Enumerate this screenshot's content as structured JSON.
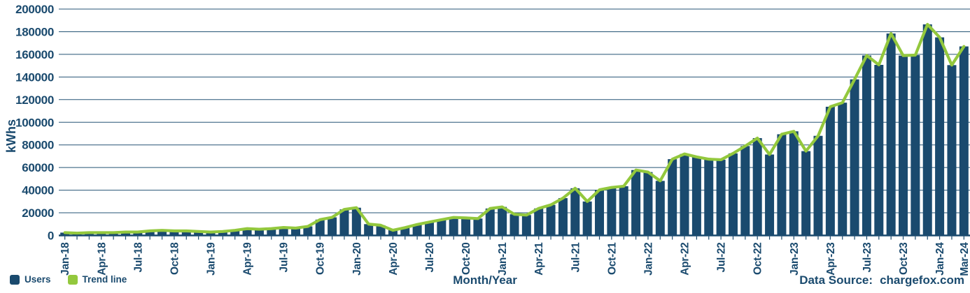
{
  "chart_data": {
    "type": "bar",
    "title": "",
    "ylabel": "kWhs",
    "xlabel": "Month/Year",
    "ylim": [
      0,
      200000
    ],
    "ytick_step": 20000,
    "grid": true,
    "legend_position": "bottom-left",
    "source_label": "Data Source:",
    "source_value": "chargefox.com",
    "colors": {
      "bar": "#1a4a6e",
      "trend": "#93c83d",
      "axis": "#1a4a6e",
      "text": "#1a4a6e"
    },
    "x": [
      "Jan-18",
      "Feb-18",
      "Mar-18",
      "Apr-18",
      "May-18",
      "Jun-18",
      "Jul-18",
      "Aug-18",
      "Sep-18",
      "Oct-18",
      "Nov-18",
      "Dec-18",
      "Jan-19",
      "Feb-19",
      "Mar-19",
      "Apr-19",
      "May-19",
      "Jun-19",
      "Jul-19",
      "Aug-19",
      "Sep-19",
      "Oct-19",
      "Nov-19",
      "Dec-19",
      "Jan-20",
      "Feb-20",
      "Mar-20",
      "Apr-20",
      "May-20",
      "Jun-20",
      "Jul-20",
      "Aug-20",
      "Sep-20",
      "Oct-20",
      "Nov-20",
      "Dec-20",
      "Jan-21",
      "Feb-21",
      "Mar-21",
      "Apr-21",
      "May-21",
      "Jun-21",
      "Jul-21",
      "Aug-21",
      "Sep-21",
      "Oct-21",
      "Nov-21",
      "Dec-21",
      "Jan-22",
      "Feb-22",
      "Mar-22",
      "Apr-22",
      "May-22",
      "Jun-22",
      "Jul-22",
      "Aug-22",
      "Sep-22",
      "Oct-22",
      "Nov-22",
      "Dec-22",
      "Jan-23",
      "Feb-23",
      "Mar-23",
      "Apr-23",
      "May-23",
      "Jun-23",
      "Jul-23",
      "Aug-23",
      "Sep-23",
      "Oct-23",
      "Nov-23",
      "Dec-23",
      "Jan-24",
      "Feb-24",
      "Mar-24"
    ],
    "xtick_labels": [
      "Jan-18",
      "Apr-18",
      "Jul-18",
      "Oct-18",
      "Jan-19",
      "Apr-19",
      "Jul-19",
      "Oct-19",
      "Jan-20",
      "Apr-20",
      "Jul-20",
      "Oct-20",
      "Jan-21",
      "Apr-21",
      "Jul-21",
      "Oct-21",
      "Jan-22",
      "Apr-22",
      "Jul-22",
      "Oct-22",
      "Jan-23",
      "Apr-23",
      "Jul-23",
      "Oct-23",
      "Jan-24",
      "Mar-24"
    ],
    "series": [
      {
        "name": "Users",
        "type": "bar",
        "color": "#1a4a6e",
        "values": [
          2500,
          2000,
          2500,
          2500,
          2500,
          3000,
          3000,
          4000,
          4500,
          4000,
          4000,
          3500,
          3000,
          3500,
          4500,
          6000,
          5500,
          6000,
          7000,
          6500,
          8000,
          14000,
          16000,
          23000,
          24500,
          10000,
          9000,
          4600,
          6900,
          9700,
          11800,
          13900,
          15900,
          15500,
          14900,
          23800,
          25200,
          18700,
          18000,
          23900,
          27000,
          33000,
          41700,
          30000,
          40300,
          42400,
          43500,
          57800,
          56000,
          48200,
          67400,
          72000,
          69400,
          67400,
          66900,
          72500,
          79000,
          86000,
          71500,
          89400,
          92000,
          74500,
          88000,
          113700,
          117300,
          137900,
          159000,
          150700,
          178400,
          158900,
          159300,
          186500,
          175000,
          150500,
          167000
        ]
      },
      {
        "name": "Trend line",
        "type": "line",
        "color": "#93c83d",
        "values": [
          2500,
          2000,
          2500,
          2500,
          2500,
          3000,
          3000,
          4000,
          4500,
          4000,
          4000,
          3500,
          3000,
          3500,
          4500,
          6000,
          5500,
          6000,
          7000,
          6500,
          8000,
          14000,
          16000,
          23000,
          24500,
          10000,
          9000,
          4600,
          6900,
          9700,
          11800,
          13900,
          15900,
          15500,
          14900,
          23800,
          25200,
          18700,
          18000,
          23900,
          27000,
          33000,
          41700,
          30000,
          40300,
          42400,
          43500,
          57800,
          56000,
          48200,
          67400,
          72000,
          69400,
          67400,
          66900,
          72500,
          79000,
          86000,
          71500,
          89400,
          92000,
          74500,
          88000,
          113700,
          117300,
          137900,
          159000,
          150700,
          178400,
          158900,
          159300,
          186500,
          175000,
          150500,
          167000
        ]
      }
    ]
  }
}
